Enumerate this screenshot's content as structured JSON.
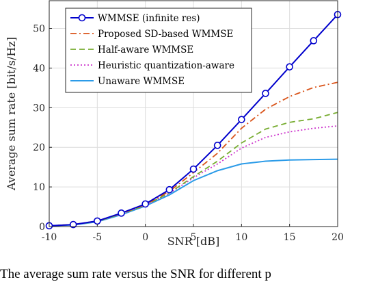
{
  "chart_data": {
    "type": "line",
    "title": "",
    "xlabel": "SNR [dB]",
    "ylabel": "Average sum rate [bit/s/Hz]",
    "xlim": [
      -10,
      20
    ],
    "ylim": [
      0,
      57
    ],
    "xticks": [
      -10,
      -5,
      0,
      5,
      10,
      15,
      20
    ],
    "yticks": [
      0,
      10,
      20,
      30,
      40,
      50
    ],
    "grid": true,
    "legend_position": "top-left",
    "x": [
      -10,
      -7.5,
      -5,
      -2.5,
      0,
      2.5,
      5,
      7.5,
      10,
      12.5,
      15,
      17.5,
      20
    ],
    "series": [
      {
        "name": "WMMSE (infinite res)",
        "color": "#0000cc",
        "style": "solid",
        "marker": "circle",
        "values": [
          0.2,
          0.5,
          1.4,
          3.4,
          5.7,
          9.3,
          14.5,
          20.5,
          27.0,
          33.6,
          40.3,
          46.9,
          53.5
        ]
      },
      {
        "name": "Proposed SD-based WMMSE",
        "color": "#d95319",
        "style": "dashdot",
        "marker": "none",
        "values": [
          0.2,
          0.5,
          1.4,
          3.3,
          5.5,
          8.9,
          13.6,
          18.5,
          24.8,
          29.6,
          32.8,
          35.1,
          36.4
        ]
      },
      {
        "name": "Half-aware WMMSE",
        "color": "#77ac30",
        "style": "dashed",
        "marker": "none",
        "values": [
          0.2,
          0.5,
          1.3,
          3.2,
          5.4,
          8.5,
          12.6,
          16.5,
          21.1,
          24.6,
          26.3,
          27.2,
          28.8
        ]
      },
      {
        "name": "Heuristic quantization-aware",
        "color": "#cc33cc",
        "style": "dotted",
        "marker": "none",
        "values": [
          0.2,
          0.5,
          1.3,
          3.2,
          5.4,
          8.4,
          12.3,
          15.8,
          19.8,
          22.5,
          23.9,
          24.8,
          25.4
        ]
      },
      {
        "name": "Unaware WMMSE",
        "color": "#2b9be8",
        "style": "solid",
        "marker": "none",
        "values": [
          0.2,
          0.4,
          1.2,
          3.0,
          5.2,
          8.0,
          11.6,
          14.1,
          15.8,
          16.5,
          16.8,
          16.9,
          17.0
        ]
      }
    ]
  },
  "caption": "The average sum rate versus the SNR for different p"
}
